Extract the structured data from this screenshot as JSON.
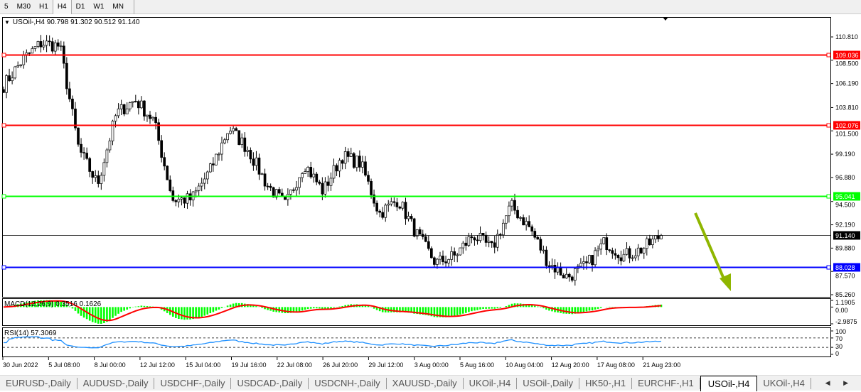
{
  "timeframes": [
    {
      "label": "5"
    },
    {
      "label": "M30"
    },
    {
      "label": "H1"
    },
    {
      "label": "H4",
      "selected": true
    },
    {
      "label": "D1"
    },
    {
      "label": "W1"
    },
    {
      "label": "MN"
    }
  ],
  "chart": {
    "symbol_info": "USOil-,H4  90.798 91.302 90.512 91.140",
    "price_labels": [
      "110.810",
      "108.500",
      "106.190",
      "103.810",
      "101.500",
      "99.190",
      "96.880",
      "94.500",
      "92.190",
      "89.880",
      "87.570",
      "85.260"
    ],
    "price_range": [
      85.26,
      110.81
    ],
    "bid": {
      "value": "91.140",
      "color": "#000000"
    },
    "hlines": [
      {
        "value": "109.036",
        "color": "#ff0000"
      },
      {
        "value": "102.076",
        "color": "#ff0000"
      },
      {
        "value": "95.041",
        "color": "#00ff00"
      },
      {
        "value": "88.028",
        "color": "#0000ff"
      }
    ],
    "close_path": [
      106.0,
      108.5,
      110.2,
      109.9,
      99.7,
      96.2,
      103.2,
      104.6,
      102.5,
      94.7,
      94.7,
      97.6,
      101.8,
      99.7,
      96.2,
      94.1,
      98.3,
      95.5,
      99.0,
      98.3,
      93.3,
      94.7,
      91.2,
      88.4,
      89.1,
      91.2,
      89.8,
      94.1,
      91.9,
      88.4,
      87.0,
      88.1,
      90.5,
      89.1,
      89.8,
      91.14
    ],
    "arrow_color": "#8fb600",
    "time_labels": [
      "30 Jun 2022",
      "5 Jul 08:00",
      "8 Jul 00:00",
      "12 Jul 12:00",
      "15 Jul 04:00",
      "19 Jul 16:00",
      "22 Jul 08:00",
      "26 Jul 20:00",
      "29 Jul 12:00",
      "3 Aug 00:00",
      "5 Aug 16:00",
      "10 Aug 04:00",
      "12 Aug 20:00",
      "17 Aug 08:00",
      "21 Aug 23:00"
    ]
  },
  "macd": {
    "label": "MACD(12,26,9) 0.3516 0.1626",
    "scale": [
      "1.1905",
      "0.00",
      "-2.9875"
    ],
    "hist_color": "#00ff00",
    "signal_color": "#ff0000"
  },
  "rsi": {
    "label": "RSI(14) 57.3069",
    "scale": [
      "100",
      "70",
      "30",
      "0"
    ],
    "color": "#1e90ff"
  },
  "tabs": [
    {
      "label": "EURUSD-,Daily"
    },
    {
      "label": "AUDUSD-,Daily"
    },
    {
      "label": "USDCHF-,Daily"
    },
    {
      "label": "USDCAD-,Daily"
    },
    {
      "label": "USDCNH-,Daily"
    },
    {
      "label": "XAUUSD-,Daily"
    },
    {
      "label": "UKOil-,H4"
    },
    {
      "label": "USOil-,Daily"
    },
    {
      "label": "HK50-,H1"
    },
    {
      "label": "EURCHF-,H1"
    },
    {
      "label": "USOil-,H4",
      "active": true
    },
    {
      "label": "UKOil-,H4"
    }
  ],
  "tab_nav": "◀ ▶"
}
